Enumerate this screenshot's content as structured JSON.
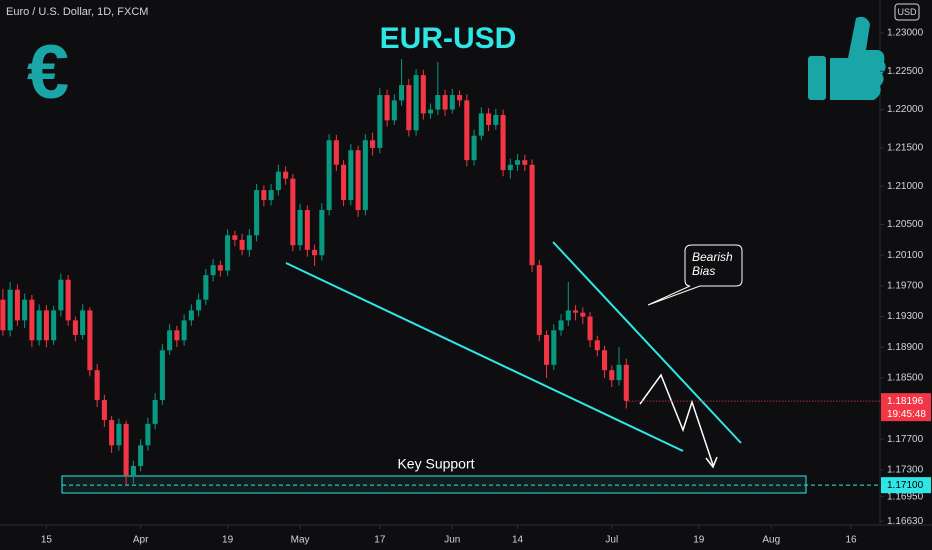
{
  "chart_data": {
    "type": "candlestick",
    "header": "Euro / U.S. Dollar, 1D, FXCM",
    "currency": "USD",
    "title": "EUR-USD",
    "logo": "€",
    "annotations": [
      "Key Support",
      "Bearish Bias"
    ],
    "up_color": "#089981",
    "down_color": "#f23645",
    "line_color": "#2ee6e6",
    "ylim": [
      1.1658,
      1.2343
    ],
    "xlim": [
      -0.4,
      121
    ],
    "yticks": [
      {
        "value": 1.23,
        "label": "1.23000"
      },
      {
        "value": 1.225,
        "label": "1.22500"
      },
      {
        "value": 1.22,
        "label": "1.22000"
      },
      {
        "value": 1.215,
        "label": "1.21500"
      },
      {
        "value": 1.21,
        "label": "1.21000"
      },
      {
        "value": 1.205,
        "label": "1.20500"
      },
      {
        "value": 1.201,
        "label": "1.20100"
      },
      {
        "value": 1.197,
        "label": "1.19700"
      },
      {
        "value": 1.193,
        "label": "1.19300"
      },
      {
        "value": 1.189,
        "label": "1.18900"
      },
      {
        "value": 1.185,
        "label": "1.18500"
      },
      {
        "value": 1.177,
        "label": "1.17700"
      },
      {
        "value": 1.173,
        "label": "1.17300"
      },
      {
        "value": 1.1695,
        "label": "1.16950"
      },
      {
        "value": 1.1663,
        "label": "1.16630"
      }
    ],
    "xticks": [
      {
        "value": 6,
        "label": "15"
      },
      {
        "value": 19,
        "label": "Apr"
      },
      {
        "value": 31,
        "label": "19"
      },
      {
        "value": 41,
        "label": "May"
      },
      {
        "value": 52,
        "label": "17"
      },
      {
        "value": 62,
        "label": "Jun"
      },
      {
        "value": 71,
        "label": "14"
      },
      {
        "value": 84,
        "label": "Jul"
      },
      {
        "value": 96,
        "label": "19"
      },
      {
        "value": 106,
        "label": "Aug"
      },
      {
        "value": 117,
        "label": "16"
      }
    ],
    "current_price": {
      "value": 1.18196,
      "label": "1.18196"
    },
    "countdown": "19:45:48",
    "support_level": {
      "value": 1.171,
      "label": "1.17100"
    },
    "ohlc": [
      [
        1.1952,
        1.1966,
        1.1905,
        1.1912
      ],
      [
        1.1912,
        1.1975,
        1.1904,
        1.1965
      ],
      [
        1.1965,
        1.1972,
        1.1918,
        1.1925
      ],
      [
        1.1925,
        1.196,
        1.1915,
        1.1952
      ],
      [
        1.1952,
        1.1958,
        1.189,
        1.1899
      ],
      [
        1.1899,
        1.1946,
        1.1892,
        1.1938
      ],
      [
        1.1938,
        1.1945,
        1.189,
        1.1899
      ],
      [
        1.1899,
        1.1944,
        1.1893,
        1.1938
      ],
      [
        1.1938,
        1.1986,
        1.193,
        1.1978
      ],
      [
        1.1978,
        1.1984,
        1.1918,
        1.1925
      ],
      [
        1.1925,
        1.193,
        1.1898,
        1.1906
      ],
      [
        1.1906,
        1.1946,
        1.19,
        1.1938
      ],
      [
        1.1938,
        1.1942,
        1.1852,
        1.186
      ],
      [
        1.186,
        1.1868,
        1.1812,
        1.1821
      ],
      [
        1.1821,
        1.1828,
        1.1786,
        1.1795
      ],
      [
        1.1795,
        1.18,
        1.1752,
        1.1762
      ],
      [
        1.1762,
        1.1797,
        1.1755,
        1.179
      ],
      [
        1.179,
        1.1794,
        1.171,
        1.1723
      ],
      [
        1.1723,
        1.1742,
        1.1712,
        1.1735
      ],
      [
        1.1735,
        1.177,
        1.1728,
        1.1762
      ],
      [
        1.1762,
        1.1798,
        1.1755,
        1.179
      ],
      [
        1.179,
        1.183,
        1.1783,
        1.1821
      ],
      [
        1.1821,
        1.1894,
        1.1815,
        1.1886
      ],
      [
        1.1886,
        1.192,
        1.188,
        1.1912
      ],
      [
        1.1912,
        1.1918,
        1.189,
        1.1899
      ],
      [
        1.1899,
        1.1933,
        1.1892,
        1.1925
      ],
      [
        1.1925,
        1.1946,
        1.1918,
        1.1938
      ],
      [
        1.1938,
        1.196,
        1.193,
        1.1952
      ],
      [
        1.1952,
        1.1992,
        1.1945,
        1.1984
      ],
      [
        1.1984,
        1.2005,
        1.1976,
        1.1997
      ],
      [
        1.1997,
        1.2003,
        1.1982,
        1.199
      ],
      [
        1.199,
        1.2044,
        1.1983,
        1.2036
      ],
      [
        1.2036,
        1.2042,
        1.2022,
        1.203
      ],
      [
        1.203,
        1.2038,
        1.201,
        1.2017
      ],
      [
        1.2017,
        1.2044,
        1.2008,
        1.2036
      ],
      [
        1.2036,
        1.2103,
        1.2028,
        1.2095
      ],
      [
        1.2095,
        1.2101,
        1.2074,
        1.2082
      ],
      [
        1.2082,
        1.2103,
        1.2075,
        1.2095
      ],
      [
        1.2095,
        1.2128,
        1.2088,
        1.2119
      ],
      [
        1.2119,
        1.2126,
        1.2102,
        1.211
      ],
      [
        1.211,
        1.2116,
        1.2015,
        1.2023
      ],
      [
        1.2023,
        1.2077,
        1.2016,
        1.2069
      ],
      [
        1.2069,
        1.2075,
        1.2008,
        1.2017
      ],
      [
        1.2017,
        1.2024,
        1.1996,
        1.201
      ],
      [
        1.201,
        1.2078,
        1.2003,
        1.2069
      ],
      [
        1.2069,
        1.2168,
        1.2062,
        1.216
      ],
      [
        1.216,
        1.2167,
        1.212,
        1.2128
      ],
      [
        1.2128,
        1.2134,
        1.2074,
        1.2082
      ],
      [
        1.2082,
        1.2155,
        1.2075,
        1.2147
      ],
      [
        1.2147,
        1.2153,
        1.206,
        1.2069
      ],
      [
        1.2069,
        1.2168,
        1.2062,
        1.216
      ],
      [
        1.216,
        1.217,
        1.214,
        1.215
      ],
      [
        1.215,
        1.2228,
        1.2143,
        1.2219
      ],
      [
        1.2219,
        1.2226,
        1.2178,
        1.2186
      ],
      [
        1.2186,
        1.222,
        1.218,
        1.2212
      ],
      [
        1.2212,
        1.2266,
        1.2205,
        1.2232
      ],
      [
        1.2232,
        1.224,
        1.2165,
        1.2173
      ],
      [
        1.2173,
        1.2253,
        1.2166,
        1.2245
      ],
      [
        1.2245,
        1.2252,
        1.2187,
        1.2195
      ],
      [
        1.2195,
        1.2208,
        1.2188,
        1.22
      ],
      [
        1.22,
        1.2262,
        1.2193,
        1.2219
      ],
      [
        1.2219,
        1.2226,
        1.2192,
        1.22
      ],
      [
        1.22,
        1.2227,
        1.2195,
        1.2219
      ],
      [
        1.2219,
        1.2225,
        1.2204,
        1.2212
      ],
      [
        1.2212,
        1.222,
        1.2126,
        1.2134
      ],
      [
        1.2134,
        1.2174,
        1.2127,
        1.2166
      ],
      [
        1.2166,
        1.2203,
        1.216,
        1.2195
      ],
      [
        1.2195,
        1.2202,
        1.2172,
        1.218
      ],
      [
        1.218,
        1.2201,
        1.2174,
        1.2193
      ],
      [
        1.2193,
        1.22,
        1.2113,
        1.2121
      ],
      [
        1.2121,
        1.2136,
        1.211,
        1.2128
      ],
      [
        1.2128,
        1.2142,
        1.212,
        1.2134
      ],
      [
        1.2134,
        1.2141,
        1.212,
        1.2128
      ],
      [
        1.2128,
        1.2135,
        1.1988,
        1.1997
      ],
      [
        1.1997,
        1.2004,
        1.1898,
        1.1906
      ],
      [
        1.1906,
        1.1912,
        1.185,
        1.1867
      ],
      [
        1.1867,
        1.192,
        1.186,
        1.1912
      ],
      [
        1.1912,
        1.1933,
        1.1905,
        1.1925
      ],
      [
        1.1925,
        1.1975,
        1.1918,
        1.1938
      ],
      [
        1.1938,
        1.1945,
        1.1925,
        1.1935
      ],
      [
        1.1935,
        1.1942,
        1.192,
        1.193
      ],
      [
        1.193,
        1.1936,
        1.189,
        1.1899
      ],
      [
        1.1899,
        1.1905,
        1.1878,
        1.1886
      ],
      [
        1.1886,
        1.1892,
        1.185,
        1.186
      ],
      [
        1.186,
        1.1866,
        1.1838,
        1.1847
      ],
      [
        1.1847,
        1.189,
        1.184,
        1.1867
      ],
      [
        1.1867,
        1.1875,
        1.181,
        1.182
      ]
    ]
  }
}
